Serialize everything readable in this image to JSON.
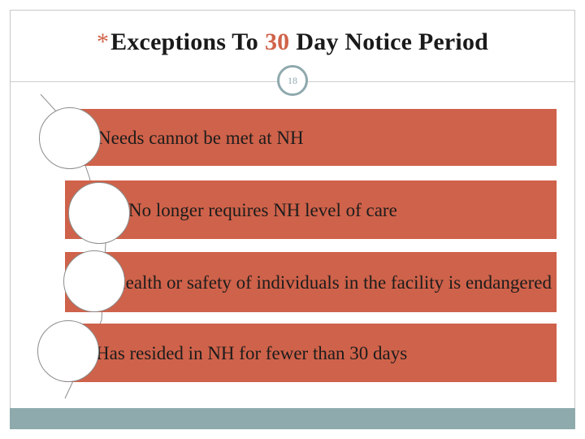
{
  "slide": {
    "title_star": "*",
    "title_part1": "Exceptions To",
    "title_number": "30",
    "title_part2": "Day Notice Period",
    "page_number": "18"
  },
  "items": [
    {
      "text": "Needs cannot be met at NH"
    },
    {
      "text": "No longer requires NH level of care"
    },
    {
      "text": "Health or safety of individuals in the facility is endangered"
    },
    {
      "text": "Has resided in NH for fewer than 30 days"
    }
  ],
  "colors": {
    "accent": "#cf624a",
    "teal": "#8eaaad"
  }
}
